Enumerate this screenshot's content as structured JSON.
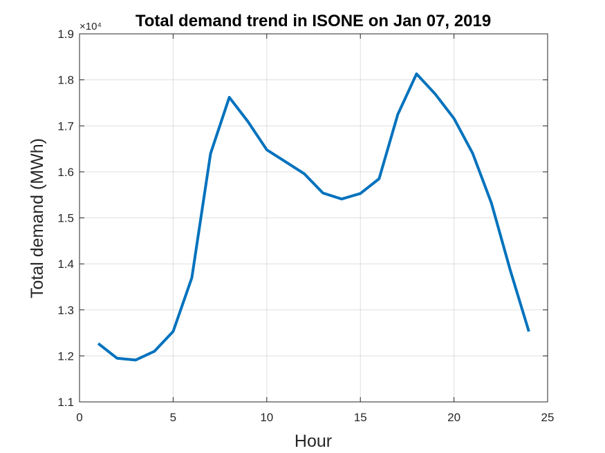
{
  "chart_data": {
    "type": "line",
    "title": "Total demand trend in ISONE on Jan 07, 2019",
    "xlabel": "Hour",
    "ylabel": "Total demand (MWh)",
    "y_exponent_label": "×10⁴",
    "xlim": [
      0,
      25
    ],
    "ylim": [
      1.1,
      1.9
    ],
    "y_scale_factor": 10000,
    "grid": true,
    "xticks": [
      0,
      5,
      10,
      15,
      20,
      25
    ],
    "yticks": [
      1.1,
      1.2,
      1.3,
      1.4,
      1.5,
      1.6,
      1.7,
      1.8,
      1.9
    ],
    "xtick_labels": [
      "0",
      "5",
      "10",
      "15",
      "20",
      "25"
    ],
    "ytick_labels": [
      "1.1",
      "1.2",
      "1.3",
      "1.4",
      "1.5",
      "1.6",
      "1.7",
      "1.8",
      "1.9"
    ],
    "series": [
      {
        "color": "#0072BD",
        "x": [
          1,
          2,
          3,
          4,
          5,
          6,
          7,
          8,
          9,
          10,
          11,
          12,
          13,
          14,
          15,
          16,
          17,
          18,
          19,
          20,
          21,
          22,
          23,
          24
        ],
        "y": [
          1.227,
          1.195,
          1.191,
          1.21,
          1.253,
          1.37,
          1.64,
          1.762,
          1.709,
          1.648,
          1.622,
          1.596,
          1.554,
          1.541,
          1.553,
          1.585,
          1.725,
          1.813,
          1.769,
          1.716,
          1.64,
          1.532,
          1.387,
          1.253
        ]
      }
    ]
  }
}
